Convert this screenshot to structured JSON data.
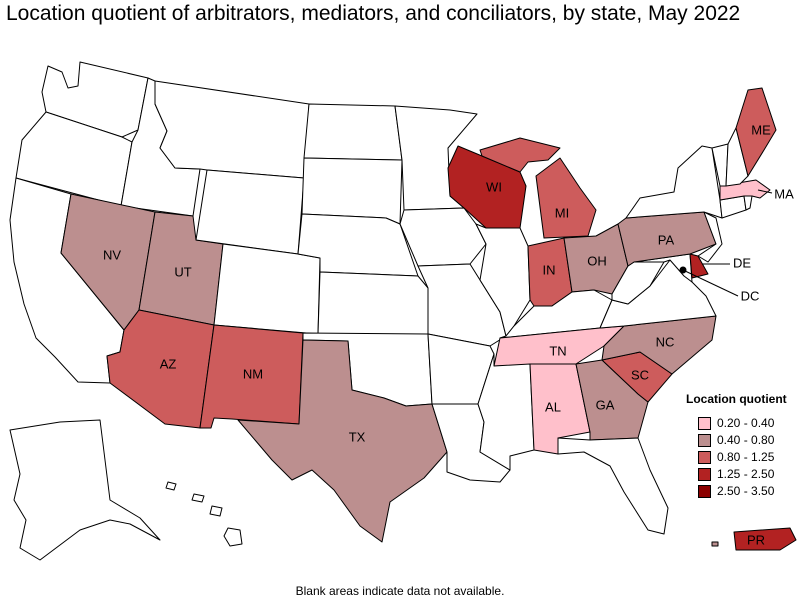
{
  "title": "Location quotient of arbitrators, mediators, and conciliators, by state, May 2022",
  "footnote": "Blank areas indicate data not available.",
  "legend": {
    "title": "Location quotient",
    "items": [
      {
        "label": "0.20 - 0.40",
        "color": "#ffc0cb"
      },
      {
        "label": "0.40 - 0.80",
        "color": "#bc8f8f"
      },
      {
        "label": "0.80 - 1.25",
        "color": "#cd5c5c"
      },
      {
        "label": "1.25 - 2.50",
        "color": "#b22222"
      },
      {
        "label": "2.50 - 3.50",
        "color": "#8b0000"
      }
    ]
  },
  "states": {
    "WA": {
      "label": "",
      "category": null
    },
    "OR": {
      "label": "",
      "category": null
    },
    "CA": {
      "label": "",
      "category": null
    },
    "ID": {
      "label": "",
      "category": null
    },
    "NV": {
      "label": "NV",
      "category": 1
    },
    "UT": {
      "label": "UT",
      "category": 1
    },
    "AZ": {
      "label": "AZ",
      "category": 2
    },
    "MT": {
      "label": "",
      "category": null
    },
    "WY": {
      "label": "",
      "category": null
    },
    "CO": {
      "label": "",
      "category": null
    },
    "NM": {
      "label": "NM",
      "category": 2
    },
    "ND": {
      "label": "",
      "category": null
    },
    "SD": {
      "label": "",
      "category": null
    },
    "NE": {
      "label": "",
      "category": null
    },
    "KS": {
      "label": "",
      "category": null
    },
    "OK": {
      "label": "",
      "category": null
    },
    "TX": {
      "label": "TX",
      "category": 1
    },
    "MN": {
      "label": "",
      "category": null
    },
    "IA": {
      "label": "",
      "category": null
    },
    "MO": {
      "label": "",
      "category": null
    },
    "AR": {
      "label": "",
      "category": null
    },
    "LA": {
      "label": "",
      "category": null
    },
    "WI": {
      "label": "WI",
      "category": 3
    },
    "IL": {
      "label": "",
      "category": null
    },
    "MI": {
      "label": "MI",
      "category": 2
    },
    "IN": {
      "label": "IN",
      "category": 2
    },
    "OH": {
      "label": "OH",
      "category": 1
    },
    "KY": {
      "label": "",
      "category": null
    },
    "TN": {
      "label": "TN",
      "category": 0
    },
    "MS": {
      "label": "",
      "category": null
    },
    "AL": {
      "label": "AL",
      "category": 0
    },
    "GA": {
      "label": "GA",
      "category": 1
    },
    "FL": {
      "label": "",
      "category": null
    },
    "SC": {
      "label": "SC",
      "category": 2
    },
    "NC": {
      "label": "NC",
      "category": 1
    },
    "VA": {
      "label": "",
      "category": null
    },
    "WV": {
      "label": "",
      "category": null
    },
    "MD": {
      "label": "",
      "category": null
    },
    "DE": {
      "label": "DE",
      "category": 3
    },
    "DC": {
      "label": "DC",
      "category": null
    },
    "PA": {
      "label": "PA",
      "category": 1
    },
    "NJ": {
      "label": "",
      "category": null
    },
    "NY": {
      "label": "",
      "category": null
    },
    "CT": {
      "label": "",
      "category": null
    },
    "RI": {
      "label": "",
      "category": null
    },
    "MA": {
      "label": "MA",
      "category": 0
    },
    "VT": {
      "label": "",
      "category": null
    },
    "NH": {
      "label": "",
      "category": null
    },
    "ME": {
      "label": "ME",
      "category": 2
    },
    "AK": {
      "label": "",
      "category": null
    },
    "HI": {
      "label": "",
      "category": null
    },
    "PR": {
      "label": "PR",
      "category": 3
    }
  }
}
